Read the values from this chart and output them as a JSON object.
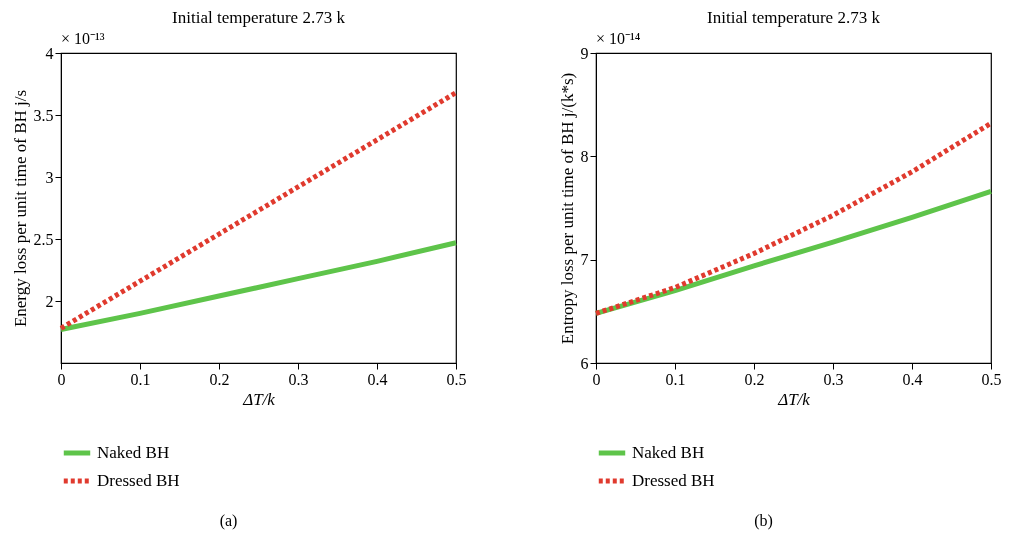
{
  "chart_data": [
    {
      "type": "line",
      "title": "Initial temperature 2.73 k",
      "xlabel": "ΔT/k",
      "ylabel": "Energy loss per unit time of BH j/s",
      "annotations": [
        "× 10⁻¹³",
        "(a)"
      ],
      "x": [
        0,
        0.1,
        0.2,
        0.3,
        0.4,
        0.5
      ],
      "xlim": [
        0,
        0.5
      ],
      "xticks": [
        0,
        0.1,
        0.2,
        0.3,
        0.4,
        0.5
      ],
      "ylim": [
        1.5,
        4
      ],
      "yticks": [
        2,
        2.5,
        3,
        3.5,
        4
      ],
      "grid": false,
      "legend": "bottom",
      "series": [
        {
          "name": "Naked BH",
          "color": "#5ec44a",
          "line_style": "solid",
          "values": [
            1.77,
            1.9,
            2.04,
            2.18,
            2.32,
            2.47
          ]
        },
        {
          "name": "Dressed BH",
          "color": "#e03a2e",
          "line_style": "dotted",
          "values": [
            1.78,
            2.16,
            2.54,
            2.92,
            3.3,
            3.68
          ]
        }
      ]
    },
    {
      "type": "line",
      "title": "Initial temperature 2.73 k",
      "xlabel": "ΔT/k",
      "ylabel": "Entropy loss per unit time of BH j/(k*s)",
      "annotations": [
        "× 10⁻¹⁴",
        "(b)"
      ],
      "x": [
        0,
        0.1,
        0.2,
        0.3,
        0.4,
        0.5
      ],
      "xlim": [
        0,
        0.5
      ],
      "xticks": [
        0,
        0.1,
        0.2,
        0.3,
        0.4,
        0.5
      ],
      "ylim": [
        6,
        9
      ],
      "yticks": [
        6,
        7,
        8,
        9
      ],
      "grid": false,
      "legend": "bottom",
      "series": [
        {
          "name": "Naked BH",
          "color": "#5ec44a",
          "line_style": "solid",
          "values": [
            6.48,
            6.7,
            6.94,
            7.17,
            7.41,
            7.66
          ]
        },
        {
          "name": "Dressed BH",
          "color": "#e03a2e",
          "line_style": "dotted",
          "values": [
            6.48,
            6.73,
            7.06,
            7.43,
            7.85,
            8.32
          ]
        }
      ]
    }
  ]
}
